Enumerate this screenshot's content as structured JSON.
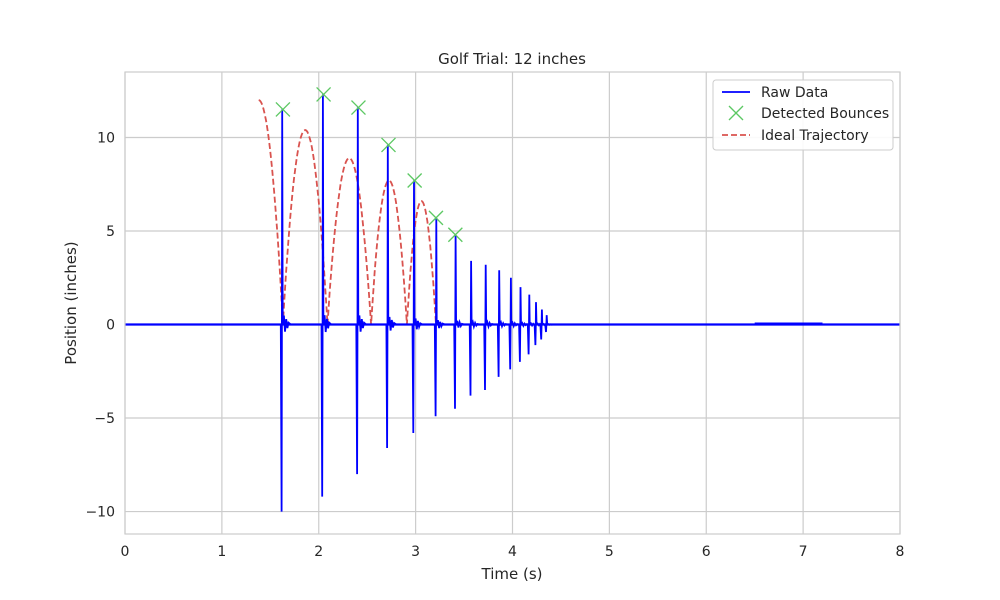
{
  "chart_data": {
    "type": "line",
    "title": "Golf Trial: 12 inches",
    "xlabel": "Time (s)",
    "ylabel": "Position (inches)",
    "xlim": [
      0,
      8
    ],
    "ylim": [
      -11.2,
      13.5
    ],
    "xticks": [
      0,
      1,
      2,
      3,
      4,
      5,
      6,
      7,
      8
    ],
    "yticks": [
      -10,
      -5,
      0,
      5,
      10
    ],
    "grid": true,
    "legend_position": "top-right",
    "series": [
      {
        "name": "Raw Data",
        "kind": "line",
        "color": "#0000ff",
        "spikes": [
          {
            "t": 1.62,
            "peak": 11.5,
            "trough": -10.0
          },
          {
            "t": 2.04,
            "peak": 12.3,
            "trough": -9.2
          },
          {
            "t": 2.4,
            "peak": 11.6,
            "trough": -8.0
          },
          {
            "t": 2.71,
            "peak": 9.6,
            "trough": -6.6
          },
          {
            "t": 2.98,
            "peak": 7.7,
            "trough": -5.8
          },
          {
            "t": 3.21,
            "peak": 5.7,
            "trough": -4.9
          },
          {
            "t": 3.41,
            "peak": 4.8,
            "trough": -4.5
          },
          {
            "t": 3.57,
            "peak": 3.4,
            "trough": -3.8
          },
          {
            "t": 3.72,
            "peak": 3.2,
            "trough": -3.5
          },
          {
            "t": 3.86,
            "peak": 2.9,
            "trough": -2.8
          },
          {
            "t": 3.98,
            "peak": 2.5,
            "trough": -2.4
          },
          {
            "t": 4.08,
            "peak": 2.0,
            "trough": -2.0
          },
          {
            "t": 4.17,
            "peak": 1.6,
            "trough": -1.6
          },
          {
            "t": 4.24,
            "peak": 1.2,
            "trough": -1.1
          },
          {
            "t": 4.3,
            "peak": 0.8,
            "trough": -0.8
          },
          {
            "t": 4.35,
            "peak": 0.5,
            "trough": -0.4
          }
        ]
      },
      {
        "name": "Detected Bounces",
        "kind": "marker",
        "color": "#5cc863",
        "points": [
          {
            "x": 1.63,
            "y": 11.5
          },
          {
            "x": 2.05,
            "y": 12.3
          },
          {
            "x": 2.41,
            "y": 11.6
          },
          {
            "x": 2.72,
            "y": 9.6
          },
          {
            "x": 2.99,
            "y": 7.7
          },
          {
            "x": 3.21,
            "y": 5.7
          },
          {
            "x": 3.41,
            "y": 4.8
          }
        ]
      },
      {
        "name": "Ideal Trajectory",
        "kind": "dashed",
        "color": "#d9534f",
        "start": {
          "t": 1.38,
          "h": 12.0
        },
        "arcs": [
          {
            "t0": 1.63,
            "t1": 2.09,
            "peak": 10.4
          },
          {
            "t0": 2.09,
            "t1": 2.54,
            "peak": 8.9
          },
          {
            "t0": 2.54,
            "t1": 2.91,
            "peak": 7.7
          },
          {
            "t0": 2.91,
            "t1": 3.21,
            "peak": 6.6
          }
        ]
      }
    ]
  }
}
